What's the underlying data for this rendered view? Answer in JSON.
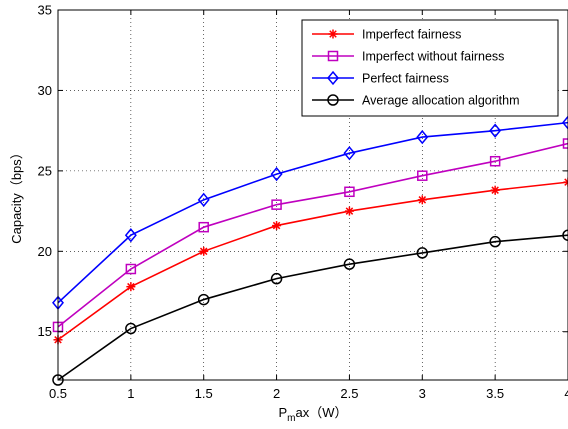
{
  "chart_data": {
    "type": "line",
    "title": "",
    "xlabel": "P_max（W）",
    "xlabel_main": "P",
    "xlabel_sub": "m",
    "xlabel_rest": "ax（W）",
    "ylabel": "Capacity（bps）",
    "xlim": [
      0.5,
      4
    ],
    "ylim": [
      12,
      35
    ],
    "xticks": [
      0.5,
      1,
      1.5,
      2,
      2.5,
      3,
      3.5,
      4
    ],
    "xtick_labels": [
      "0.5",
      "1",
      "1.5",
      "2",
      "2.5",
      "3",
      "3.5",
      "4"
    ],
    "yticks": [
      15,
      20,
      25,
      30,
      35
    ],
    "ytick_labels": [
      "15",
      "20",
      "25",
      "30",
      "35"
    ],
    "grid": true,
    "legend_position": "top-right",
    "x": [
      0.5,
      1,
      1.5,
      2,
      2.5,
      3,
      3.5,
      4
    ],
    "series": [
      {
        "name": "Imperfect fairness",
        "color": "#ff0000",
        "marker": "asterisk",
        "values": [
          14.5,
          17.8,
          20.0,
          21.6,
          22.5,
          23.2,
          23.8,
          24.3
        ]
      },
      {
        "name": "Imperfect without fairness",
        "color": "#bf00bf",
        "marker": "square",
        "values": [
          15.3,
          18.9,
          21.5,
          22.9,
          23.7,
          24.7,
          25.6,
          26.7
        ]
      },
      {
        "name": "Perfect fairness",
        "color": "#0000ff",
        "marker": "diamond",
        "values": [
          16.8,
          21.0,
          23.2,
          24.8,
          26.1,
          27.1,
          27.5,
          28.0
        ]
      },
      {
        "name": "Average allocation algorithm",
        "color": "#000000",
        "marker": "circle",
        "values": [
          12.0,
          15.2,
          17.0,
          18.3,
          19.2,
          19.9,
          20.6,
          21.0
        ]
      }
    ]
  }
}
